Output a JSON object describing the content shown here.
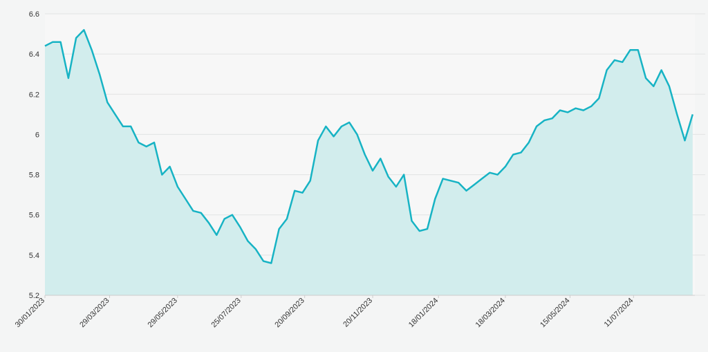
{
  "chart_data": {
    "type": "area",
    "x": [
      "30/01/2023",
      "06/02/2023",
      "13/02/2023",
      "20/02/2023",
      "27/02/2023",
      "06/03/2023",
      "13/03/2023",
      "20/03/2023",
      "27/03/2023",
      "03/04/2023",
      "10/04/2023",
      "17/04/2023",
      "24/04/2023",
      "01/05/2023",
      "08/05/2023",
      "15/05/2023",
      "22/05/2023",
      "29/05/2023",
      "05/06/2023",
      "12/06/2023",
      "19/06/2023",
      "26/06/2023",
      "03/07/2023",
      "10/07/2023",
      "17/07/2023",
      "24/07/2023",
      "31/07/2023",
      "07/08/2023",
      "14/08/2023",
      "21/08/2023",
      "28/08/2023",
      "04/09/2023",
      "11/09/2023",
      "18/09/2023",
      "25/09/2023",
      "02/10/2023",
      "09/10/2023",
      "16/10/2023",
      "23/10/2023",
      "30/10/2023",
      "06/11/2023",
      "13/11/2023",
      "20/11/2023",
      "27/11/2023",
      "04/12/2023",
      "11/12/2023",
      "18/12/2023",
      "25/12/2023",
      "01/01/2024",
      "08/01/2024",
      "15/01/2024",
      "22/01/2024",
      "29/01/2024",
      "05/02/2024",
      "12/02/2024",
      "19/02/2024",
      "26/02/2024",
      "04/03/2024",
      "11/03/2024",
      "18/03/2024",
      "25/03/2024",
      "01/04/2024",
      "08/04/2024",
      "15/04/2024",
      "22/04/2024",
      "29/04/2024",
      "06/05/2024",
      "13/05/2024",
      "20/05/2024",
      "27/05/2024",
      "03/06/2024",
      "10/06/2024",
      "17/06/2024",
      "24/06/2024",
      "01/07/2024",
      "08/07/2024",
      "15/07/2024",
      "22/07/2024",
      "29/07/2024",
      "05/08/2024",
      "12/08/2024",
      "19/08/2024",
      "26/08/2024",
      "02/09/2024"
    ],
    "values": [
      6.44,
      6.46,
      6.46,
      6.28,
      6.48,
      6.52,
      6.42,
      6.3,
      6.16,
      6.1,
      6.04,
      6.04,
      5.96,
      5.94,
      5.96,
      5.8,
      5.84,
      5.74,
      5.68,
      5.62,
      5.61,
      5.56,
      5.5,
      5.58,
      5.6,
      5.54,
      5.47,
      5.43,
      5.37,
      5.36,
      5.53,
      5.58,
      5.72,
      5.71,
      5.77,
      5.97,
      6.04,
      5.99,
      6.04,
      6.06,
      6.0,
      5.9,
      5.82,
      5.88,
      5.79,
      5.74,
      5.8,
      5.57,
      5.52,
      5.53,
      5.68,
      5.78,
      5.77,
      5.76,
      5.72,
      5.75,
      5.78,
      5.81,
      5.8,
      5.84,
      5.9,
      5.91,
      5.96,
      6.04,
      6.07,
      6.08,
      6.12,
      6.11,
      6.13,
      6.12,
      6.14,
      6.18,
      6.32,
      6.37,
      6.36,
      6.42,
      6.42,
      6.28,
      6.24,
      6.32,
      6.24,
      6.1,
      5.97,
      6.1
    ],
    "color": "#17b3c4",
    "fill_color": "#d2eded",
    "xlim": [
      "30/01/2023",
      "04/09/2024"
    ],
    "xticks": [
      "30/01/2023",
      "29/03/2023",
      "29/05/2023",
      "25/07/2023",
      "20/09/2023",
      "20/11/2023",
      "18/01/2024",
      "18/03/2024",
      "15/05/2024",
      "11/07/2024"
    ],
    "ylim": [
      5.2,
      6.6
    ],
    "yticks": [
      5.2,
      5.4,
      5.6,
      5.8,
      6.0,
      6.2,
      6.4,
      6.6
    ],
    "grid": true
  }
}
